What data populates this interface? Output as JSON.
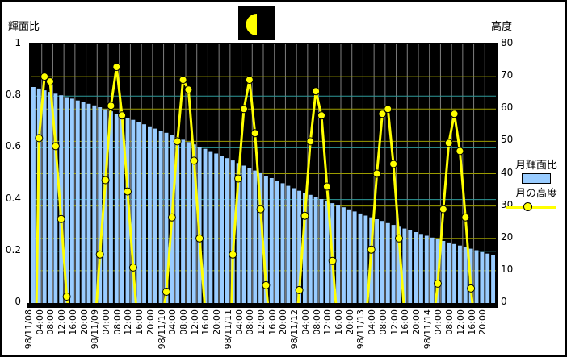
{
  "titles": {
    "left_axis_title": "輝面比",
    "right_axis_title": "高度"
  },
  "moon_icon": {
    "phase": "last-quarter"
  },
  "legend": {
    "items": [
      {
        "label": "月輝面比",
        "type": "bar"
      },
      {
        "label": "月の高度",
        "type": "line-marker"
      }
    ]
  },
  "colors": {
    "page_bg": "#FFFFFF",
    "plot_bg": "#000000",
    "bar_fill": "#99CCFF",
    "line": "#FFFF00",
    "marker_fill": "#FFFF00",
    "marker_stroke": "#000000",
    "vgrid": "#7F7F7F",
    "hgrid_left": "#2E9999",
    "hgrid_right": "#9C9C00",
    "moon": "#FFFF00"
  },
  "chart_data": {
    "type": "combo-bar-line",
    "x_start": "98/11/08 00:00",
    "x_interval_hours_per_slot": 2,
    "slots": 84,
    "x_tick_labels": [
      "98/11/08",
      "04:00",
      "08:00",
      "12:00",
      "16:00",
      "20:00",
      "98/11/09",
      "04:00",
      "08:00",
      "12:00",
      "16:00",
      "20:00",
      "98/11/10",
      "04:00",
      "08:00",
      "12:00",
      "16:00",
      "20:00",
      "98/11/11",
      "04:00",
      "08:00",
      "12:00",
      "16:00",
      "20:00",
      "98/11/12",
      "04:00",
      "08:00",
      "12:00",
      "16:00",
      "20:00",
      "98/11/13",
      "04:00",
      "08:00",
      "12:00",
      "16:00",
      "20:00",
      "98/11/14",
      "04:00",
      "08:00",
      "12:00",
      "16:00",
      "20:00"
    ],
    "slots_per_x_tick": 2,
    "left_axis": {
      "label": "輝面比",
      "range": [
        0,
        1
      ],
      "ticks": [
        "1",
        "0.8",
        "0.6",
        "0.4",
        "0.2",
        "0"
      ],
      "tick_values": [
        1,
        0.8,
        0.6,
        0.4,
        0.2,
        0
      ],
      "gridline_values": [
        0.8,
        0.6,
        0.4,
        0.2
      ]
    },
    "right_axis": {
      "label": "高度",
      "range": [
        0,
        80
      ],
      "ticks": [
        "80",
        "70",
        "60",
        "50",
        "40",
        "30",
        "20",
        "10",
        "0"
      ],
      "tick_values": [
        80,
        70,
        60,
        50,
        40,
        30,
        20,
        10,
        0
      ],
      "gridline_values": [
        70,
        60,
        50,
        40,
        30,
        20,
        10
      ]
    },
    "series": [
      {
        "name": "月輝面比",
        "type": "bar",
        "axis": "left",
        "values": [
          0.835,
          0.829,
          0.822,
          0.816,
          0.809,
          0.803,
          0.796,
          0.79,
          0.783,
          0.777,
          0.77,
          0.764,
          0.757,
          0.749,
          0.741,
          0.732,
          0.724,
          0.716,
          0.708,
          0.699,
          0.691,
          0.683,
          0.674,
          0.666,
          0.658,
          0.649,
          0.64,
          0.631,
          0.622,
          0.613,
          0.604,
          0.596,
          0.587,
          0.578,
          0.569,
          0.56,
          0.551,
          0.541,
          0.531,
          0.522,
          0.512,
          0.502,
          0.492,
          0.483,
          0.473,
          0.463,
          0.453,
          0.444,
          0.434,
          0.426,
          0.418,
          0.41,
          0.402,
          0.394,
          0.386,
          0.378,
          0.37,
          0.362,
          0.354,
          0.346,
          0.338,
          0.331,
          0.324,
          0.317,
          0.309,
          0.302,
          0.295,
          0.288,
          0.281,
          0.274,
          0.267,
          0.26,
          0.253,
          0.246,
          0.24,
          0.234,
          0.228,
          0.222,
          0.216,
          0.21,
          0.204,
          0.197,
          0.191,
          0.185
        ]
      },
      {
        "name": "月の高度",
        "type": "line",
        "axis": "right",
        "segments": [
          [
            [
              0.55,
              0
            ],
            [
              1,
              51
            ],
            [
              2,
              70
            ],
            [
              3,
              68.5
            ],
            [
              4,
              48.5
            ],
            [
              5,
              26
            ],
            [
              6,
              2
            ],
            [
              6.2,
              0
            ]
          ],
          [
            [
              11.4,
              0
            ],
            [
              12,
              15
            ],
            [
              13,
              38
            ],
            [
              14,
              61
            ],
            [
              15,
              73
            ],
            [
              16,
              58
            ],
            [
              17,
              34.5
            ],
            [
              18,
              11
            ],
            [
              18.5,
              0
            ]
          ],
          [
            [
              23.7,
              0
            ],
            [
              24,
              3.5
            ],
            [
              25,
              26.5
            ],
            [
              26,
              50
            ],
            [
              27,
              69
            ],
            [
              28,
              66
            ],
            [
              29,
              44
            ],
            [
              30,
              20
            ],
            [
              30.9,
              0
            ]
          ],
          [
            [
              35.8,
              0
            ],
            [
              36,
              15
            ],
            [
              37,
              38.5
            ],
            [
              38,
              60
            ],
            [
              39,
              69
            ],
            [
              40,
              52.5
            ],
            [
              41,
              29
            ],
            [
              42,
              5.5
            ],
            [
              42.3,
              0
            ]
          ],
          [
            [
              47.8,
              0
            ],
            [
              48,
              4
            ],
            [
              49,
              27
            ],
            [
              50,
              50
            ],
            [
              51,
              65.5
            ],
            [
              52,
              58
            ],
            [
              53,
              36
            ],
            [
              54,
              13
            ],
            [
              54.6,
              0
            ]
          ],
          [
            [
              60.3,
              0
            ],
            [
              61,
              16.5
            ],
            [
              62,
              40
            ],
            [
              63,
              58.5
            ],
            [
              64,
              60
            ],
            [
              65,
              43
            ],
            [
              66,
              20
            ],
            [
              66.85,
              0
            ]
          ],
          [
            [
              72.6,
              0
            ],
            [
              73,
              6
            ],
            [
              74,
              29
            ],
            [
              75,
              49.5
            ],
            [
              76,
              58.5
            ],
            [
              77,
              47
            ],
            [
              78,
              26.5
            ],
            [
              79,
              4.5
            ],
            [
              79.25,
              0
            ]
          ]
        ]
      }
    ]
  }
}
